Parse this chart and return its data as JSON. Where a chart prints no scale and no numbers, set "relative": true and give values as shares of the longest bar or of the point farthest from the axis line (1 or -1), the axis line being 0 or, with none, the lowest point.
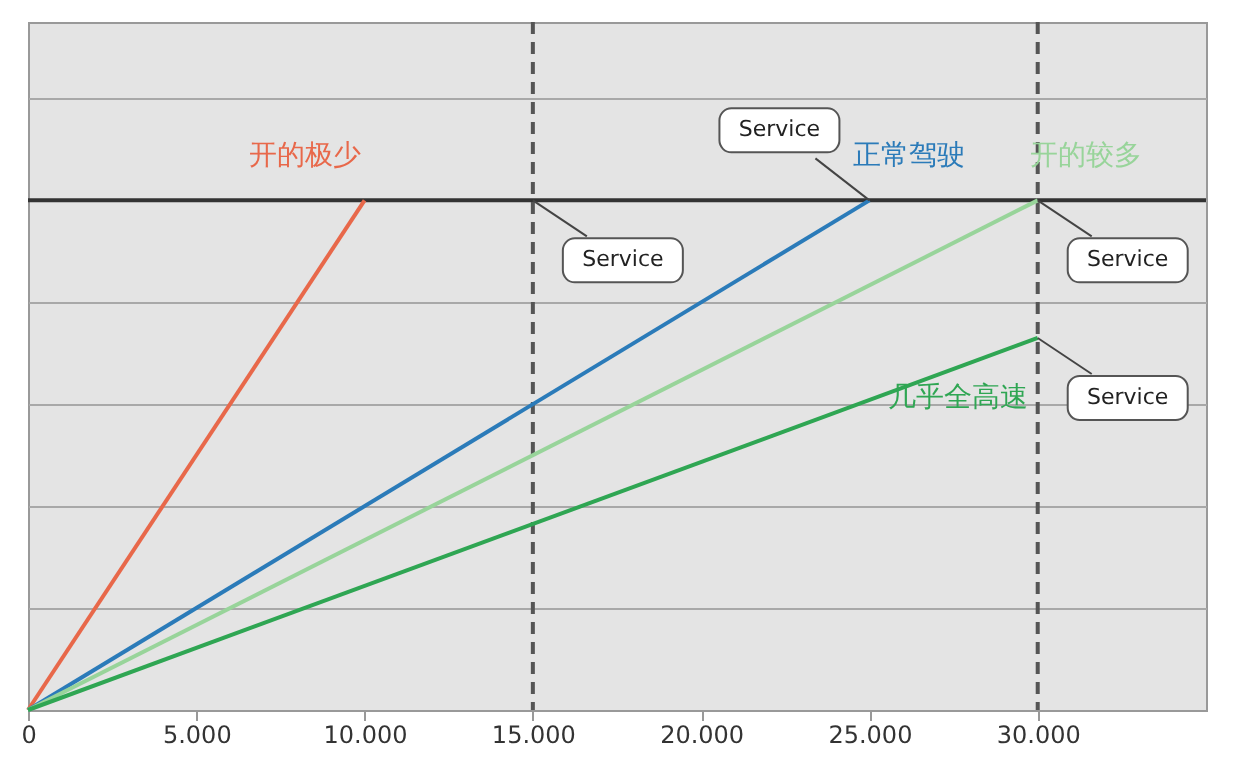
{
  "chart_data": {
    "type": "line",
    "relative": true,
    "legend": false,
    "grid": "y",
    "line_style": "solid",
    "marker": "none",
    "xlim": [
      0,
      35000
    ],
    "xticks": [
      0,
      {
        "value": 5000,
        "label": "5.000"
      },
      {
        "value": 10000,
        "label": "10.000"
      },
      {
        "value": 15000,
        "label": "15.000"
      },
      {
        "value": 20000,
        "label": "20.000"
      },
      {
        "value": 25000,
        "label": "25.000"
      },
      {
        "value": 30000,
        "label": "30.000"
      }
    ],
    "series": [
      {
        "name": "开的极少",
        "color": "#e8684a",
        "x": [
          0,
          10000
        ],
        "values": [
          0,
          1
        ]
      },
      {
        "name": "正常驾驶",
        "color": "#2b7bb9",
        "x": [
          0,
          25000
        ],
        "values": [
          0,
          1
        ]
      },
      {
        "name": "开的较多",
        "color": "#98d49a",
        "x": [
          0,
          30000
        ],
        "values": [
          0,
          1
        ]
      },
      {
        "name": "几乎全高速",
        "color": "#2fa653",
        "x": [
          0,
          30000
        ],
        "values": [
          0,
          0.73
        ]
      }
    ],
    "ref_lines": [
      {
        "axis": "y",
        "value": 1,
        "color": "#333333",
        "line_style": "solid"
      },
      {
        "axis": "x",
        "value": 15000,
        "color": "#555555",
        "line_style": "dashed"
      },
      {
        "axis": "x",
        "value": 30000,
        "color": "#555555",
        "line_style": "dashed"
      }
    ],
    "annotations": [
      {
        "text": "Service",
        "x": 15000,
        "y": 1
      },
      {
        "text": "Service",
        "x": 25000,
        "y": 1
      },
      {
        "text": "Service",
        "x": 30000,
        "y": 1
      },
      {
        "text": "Service",
        "x": 30000,
        "y": 0.73
      }
    ]
  }
}
